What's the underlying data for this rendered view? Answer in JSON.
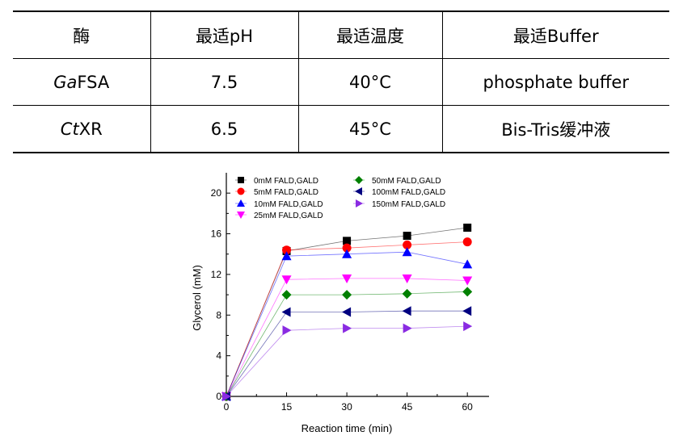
{
  "table": {
    "headers": [
      "酶",
      "最适pH",
      "最适温度",
      "最适Buffer"
    ],
    "rows": [
      {
        "enzyme_italic": "Ga",
        "enzyme_rest": "FSA",
        "ph": "7.5",
        "temp": "40°C",
        "buffer": "phosphate buffer"
      },
      {
        "enzyme_italic": "Ct",
        "enzyme_rest": "XR",
        "ph": "6.5",
        "temp": "45°C",
        "buffer": "Bis-Tris缓冲液"
      }
    ]
  },
  "chart_data": {
    "type": "line",
    "xlabel": "Reaction time (min)",
    "ylabel": "Glycerol (mM)",
    "x": [
      0,
      15,
      30,
      45,
      60
    ],
    "xticks": [
      0,
      15,
      30,
      45,
      60
    ],
    "yticks": [
      0,
      4,
      8,
      12,
      16,
      20
    ],
    "xlim": [
      0,
      66
    ],
    "ylim": [
      0,
      22
    ],
    "legend_position": "top",
    "series": [
      {
        "name": "0mM FALD,GALD",
        "values": [
          0,
          14.3,
          15.3,
          15.8,
          16.6
        ],
        "color": "#000000",
        "marker": "square"
      },
      {
        "name": "5mM FALD,GALD",
        "values": [
          0,
          14.4,
          14.6,
          14.9,
          15.2
        ],
        "color": "#ff0000",
        "marker": "circle"
      },
      {
        "name": "10mM FALD,GALD",
        "values": [
          0,
          13.8,
          14.0,
          14.2,
          13.0
        ],
        "color": "#0000ff",
        "marker": "triangle-up"
      },
      {
        "name": "25mM FALD,GALD",
        "values": [
          0,
          11.5,
          11.6,
          11.6,
          11.4
        ],
        "color": "#ff00ff",
        "marker": "triangle-down"
      },
      {
        "name": "50mM FALD,GALD",
        "values": [
          0,
          10.0,
          10.0,
          10.1,
          10.3
        ],
        "color": "#008000",
        "marker": "diamond"
      },
      {
        "name": "100mM FALD,GALD",
        "values": [
          0,
          8.3,
          8.3,
          8.4,
          8.4
        ],
        "color": "#000080",
        "marker": "triangle-left"
      },
      {
        "name": "150mM FALD,GALD",
        "values": [
          0,
          6.5,
          6.7,
          6.7,
          6.9
        ],
        "color": "#8a2be2",
        "marker": "triangle-right"
      }
    ]
  }
}
